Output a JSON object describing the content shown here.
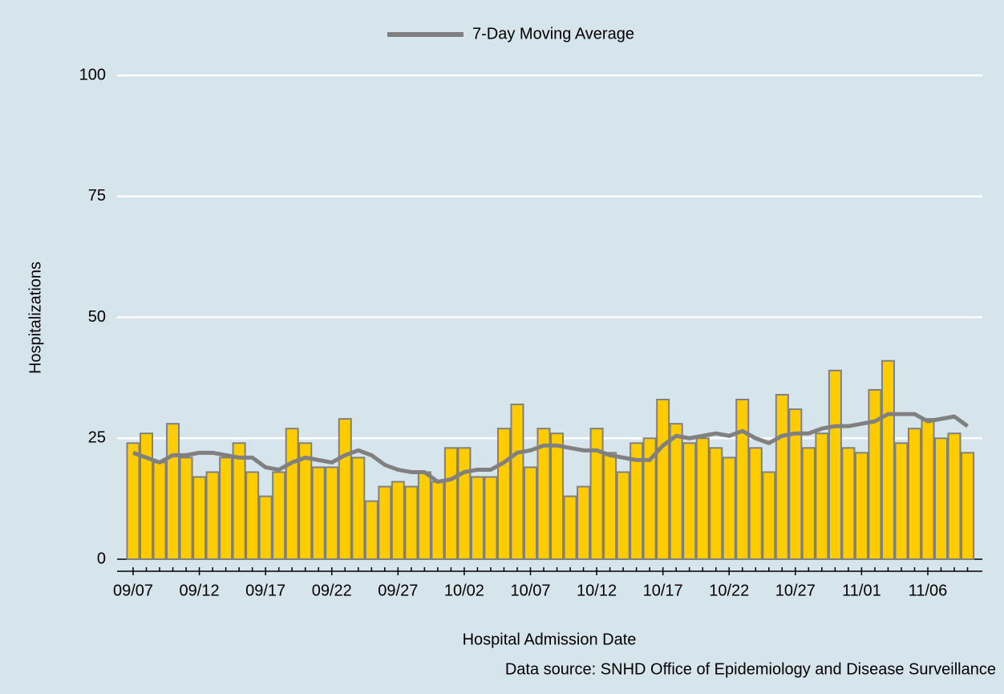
{
  "chart_data": {
    "type": "bar",
    "x_label": "Hospital Admission Date",
    "y_label": "Hospitalizations",
    "source": "Data source: SNHD Office of Epidemiology and Disease Surveillance",
    "categories": [
      "09/07",
      null,
      null,
      null,
      null,
      "09/12",
      null,
      null,
      null,
      null,
      "09/17",
      null,
      null,
      null,
      null,
      "09/22",
      null,
      null,
      null,
      null,
      "09/27",
      null,
      null,
      null,
      null,
      "10/02",
      null,
      null,
      null,
      null,
      "10/07",
      null,
      null,
      null,
      null,
      "10/12",
      null,
      null,
      null,
      null,
      "10/17",
      null,
      null,
      null,
      null,
      "10/22",
      null,
      null,
      null,
      null,
      "10/27",
      null,
      null,
      null,
      null,
      "11/01",
      null,
      null,
      null,
      null,
      "11/06",
      null,
      null,
      null
    ],
    "values": [
      24,
      26,
      20,
      28,
      21,
      17,
      18,
      21,
      24,
      18,
      13,
      18,
      27,
      24,
      19,
      19,
      29,
      21,
      12,
      15,
      16,
      15,
      18,
      16,
      23,
      23,
      17,
      17,
      27,
      32,
      19,
      27,
      26,
      13,
      15,
      27,
      22,
      18,
      24,
      25,
      33,
      28,
      24,
      25,
      23,
      21,
      33,
      23,
      18,
      34,
      31,
      23,
      26,
      39,
      23,
      22,
      35,
      41,
      24,
      27,
      29,
      25,
      26,
      22
    ],
    "color": "#ffcc00",
    "series": [
      {
        "name": "7-Day Moving Average",
        "color": "#808080",
        "type": "line",
        "values": [
          22,
          21,
          20,
          21.5,
          21.5,
          22,
          22,
          21.5,
          21,
          21,
          19,
          18.5,
          20,
          21,
          20.5,
          20,
          21.5,
          22.5,
          21.5,
          19.5,
          18.5,
          18,
          18,
          16,
          16.5,
          18,
          18.5,
          18.5,
          20,
          22,
          22.5,
          23.5,
          23.5,
          23,
          22.5,
          22.5,
          21.5,
          21,
          20.5,
          20.5,
          23.5,
          25.5,
          25,
          25.5,
          26,
          25.5,
          26.5,
          25,
          24,
          25.5,
          26,
          26,
          27,
          27.5,
          27.5,
          28,
          28.5,
          30,
          30,
          30,
          28.5,
          29,
          29.5,
          27.5
        ]
      }
    ],
    "ylim": [
      0,
      100
    ],
    "yticks": [
      0,
      25,
      50,
      75,
      100
    ],
    "grid": true
  }
}
